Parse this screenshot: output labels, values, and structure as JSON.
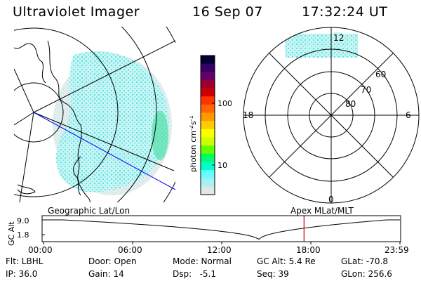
{
  "header": {
    "instrument": "Ultraviolet Imager",
    "date": "16 Sep 07",
    "time": "17:32:24 UT"
  },
  "colorbar": {
    "unit_label": "photon cm-2s-1",
    "unit_main": "photon cm",
    "unit_exp1": "-2",
    "unit_s": "s",
    "unit_exp2": "-1",
    "ticks": [
      "100",
      "10"
    ],
    "colors": [
      "#000033",
      "#330066",
      "#660066",
      "#990033",
      "#cc0000",
      "#ff3300",
      "#ff6600",
      "#ff9900",
      "#ffcc00",
      "#ffff00",
      "#ccff00",
      "#66ff00",
      "#00ff66",
      "#00ffcc",
      "#66ffff",
      "#aaf0f0",
      "#dde8e8"
    ]
  },
  "polar_plot": {
    "mlt_labels": {
      "top": "12",
      "left": "18",
      "right": "6",
      "bottom": "0"
    },
    "lat_labels": [
      "60",
      "70",
      "80"
    ]
  },
  "timeline": {
    "left_title": "Geographic Lat/Lon",
    "right_title": "Apex MLat/MLT",
    "y_axis_label": "GC Alt",
    "y_ticks": [
      "9.0",
      "1.8"
    ],
    "x_ticks": [
      "00:00",
      "06:00",
      "12:00",
      "18:00",
      "23:59"
    ],
    "current_time_fraction": 0.7309,
    "altitude_min_fraction": 0.604
  },
  "status": {
    "flt": "Flt: LBHL",
    "ip": "IP: 36.0",
    "door": "Door: Open",
    "gain": "Gain: 14",
    "mode": "Mode: Normal",
    "dsp": "Dsp:   -5.1",
    "gc_alt": "GC Alt: 5.4 Re",
    "seq": "Seq: 39",
    "glat": "GLat: -70.8",
    "glon": "GLon: 256.6"
  }
}
